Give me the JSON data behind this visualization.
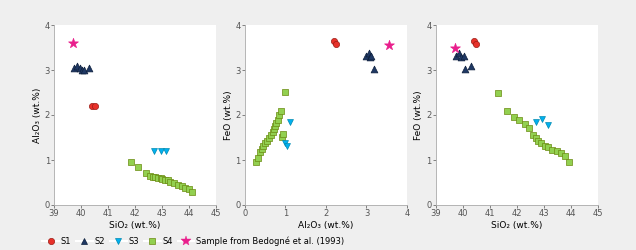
{
  "plot1": {
    "xlabel": "SiO₂ (wt.%)",
    "ylabel": "Al₂O₃ (wt.%)",
    "xlim": [
      39,
      45
    ],
    "ylim": [
      0,
      4
    ],
    "xticks": [
      39,
      40,
      41,
      42,
      43,
      44,
      45
    ],
    "yticks": [
      0,
      1,
      2,
      3,
      4
    ],
    "S1": {
      "x": [
        40.4,
        40.5
      ],
      "y": [
        2.2,
        2.2
      ]
    },
    "S2": {
      "x": [
        39.75,
        39.85,
        39.95,
        40.05,
        40.1,
        40.3
      ],
      "y": [
        3.05,
        3.1,
        3.05,
        3.0,
        3.0,
        3.05
      ]
    },
    "S3": {
      "x": [
        42.7,
        42.95,
        43.15
      ],
      "y": [
        1.2,
        1.2,
        1.2
      ]
    },
    "S4": {
      "x": [
        41.85,
        42.1,
        42.4,
        42.55,
        42.65,
        42.75,
        42.85,
        42.95,
        43.0,
        43.1,
        43.2,
        43.3,
        43.45,
        43.6,
        43.75,
        43.85,
        44.0,
        44.1
      ],
      "y": [
        0.95,
        0.85,
        0.72,
        0.65,
        0.62,
        0.62,
        0.6,
        0.6,
        0.58,
        0.55,
        0.55,
        0.52,
        0.48,
        0.45,
        0.42,
        0.38,
        0.35,
        0.3
      ]
    },
    "Bedogne": {
      "x": [
        39.7
      ],
      "y": [
        3.6
      ]
    }
  },
  "plot2": {
    "xlabel": "Al₂O₃ (wt.%)",
    "ylabel": "FeO (wt.%)",
    "xlim": [
      0,
      4
    ],
    "ylim": [
      0,
      4
    ],
    "xticks": [
      0,
      1,
      2,
      3,
      4
    ],
    "yticks": [
      0,
      1,
      2,
      3,
      4
    ],
    "S1": {
      "x": [
        2.2,
        2.25
      ],
      "y": [
        3.65,
        3.58
      ]
    },
    "S2": {
      "x": [
        3.0,
        3.05,
        3.08,
        3.12,
        3.18
      ],
      "y": [
        3.32,
        3.38,
        3.28,
        3.32,
        3.02
      ]
    },
    "S3": {
      "x": [
        1.0,
        1.05,
        1.12
      ],
      "y": [
        1.38,
        1.32,
        1.85
      ]
    },
    "S4": {
      "x": [
        0.28,
        0.32,
        0.38,
        0.42,
        0.45,
        0.5,
        0.55,
        0.6,
        0.65,
        0.7,
        0.72,
        0.75,
        0.78,
        0.82,
        0.85,
        0.88,
        0.92,
        0.95,
        1.0
      ],
      "y": [
        0.95,
        1.05,
        1.18,
        1.25,
        1.32,
        1.38,
        1.42,
        1.48,
        1.55,
        1.62,
        1.68,
        1.75,
        1.82,
        1.9,
        2.0,
        2.1,
        1.52,
        1.58,
        2.52
      ]
    },
    "Bedogne": {
      "x": [
        3.55
      ],
      "y": [
        3.55
      ]
    }
  },
  "plot3": {
    "xlabel": "SiO₂ (wt.%)",
    "ylabel": "FeO (wt.%)",
    "xlim": [
      39,
      45
    ],
    "ylim": [
      0,
      4
    ],
    "xticks": [
      39,
      40,
      41,
      42,
      43,
      44,
      45
    ],
    "yticks": [
      0,
      1,
      2,
      3,
      4
    ],
    "S1": {
      "x": [
        40.4,
        40.5
      ],
      "y": [
        3.65,
        3.58
      ]
    },
    "S2": {
      "x": [
        39.75,
        39.85,
        39.95,
        40.05,
        40.1,
        40.3
      ],
      "y": [
        3.32,
        3.38,
        3.28,
        3.32,
        3.02,
        3.1
      ]
    },
    "S3": {
      "x": [
        42.7,
        42.95,
        43.15
      ],
      "y": [
        1.85,
        1.92,
        1.78
      ]
    },
    "S4": {
      "x": [
        41.3,
        41.65,
        41.9,
        42.1,
        42.3,
        42.45,
        42.6,
        42.7,
        42.8,
        42.9,
        43.05,
        43.15,
        43.3,
        43.5,
        43.65,
        43.8,
        43.95
      ],
      "y": [
        2.5,
        2.1,
        1.95,
        1.88,
        1.8,
        1.72,
        1.55,
        1.48,
        1.42,
        1.38,
        1.32,
        1.28,
        1.22,
        1.2,
        1.15,
        1.1,
        0.95
      ]
    },
    "Bedogne": {
      "x": [
        39.7
      ],
      "y": [
        3.5
      ]
    }
  },
  "colors": {
    "S1": "#e8312a",
    "S2": "#1f3864",
    "S3": "#00b0f0",
    "S4": "#92d050",
    "Bedogne": "#e91e8c"
  },
  "bg_color": "#efefef",
  "plot_bg": "#ffffff",
  "legend_items": [
    "S1",
    "S2",
    "S3",
    "S4",
    "Sample from Bedogné et al. (1993)"
  ]
}
